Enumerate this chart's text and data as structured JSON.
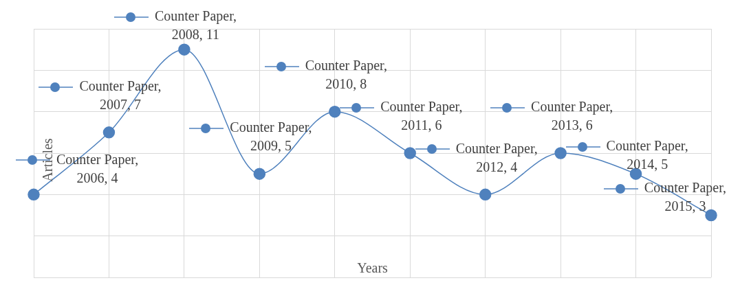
{
  "chart_data": {
    "type": "line",
    "xlabel": "Years",
    "ylabel": "Articles",
    "categories": [
      null,
      null,
      null,
      null,
      null,
      null,
      null,
      null,
      null,
      null
    ],
    "series": [
      {
        "color": "#4f81bd",
        "values": [
          4,
          7,
          11,
          5,
          8,
          6,
          4,
          6,
          5,
          3
        ],
        "value_labels": [
          "Counter Paper, 2006, 4",
          "Counter Paper, 2007, 7",
          "Counter Paper, 2008, 11",
          "Counter Paper, 2009, 5",
          "Counter Paper, 2010, 8",
          "Counter Paper, 2011, 6",
          "Counter Paper, 2012, 4",
          "Counter Paper, 2013, 6",
          "Counter Paper, 2014, 5",
          "Counter Paper, 2015, 3"
        ]
      }
    ],
    "ylim": [
      0,
      12
    ],
    "yticks": [
      {
        "value": 0,
        "label": null
      },
      {
        "value": 2,
        "label": null
      },
      {
        "value": 4,
        "label": null
      },
      {
        "value": 6,
        "label": null
      },
      {
        "value": 8,
        "label": null
      },
      {
        "value": 10,
        "label": null
      },
      {
        "value": 12,
        "label": null
      }
    ],
    "grid": true,
    "legend": false,
    "marker": "circle",
    "line_style": "solid"
  }
}
